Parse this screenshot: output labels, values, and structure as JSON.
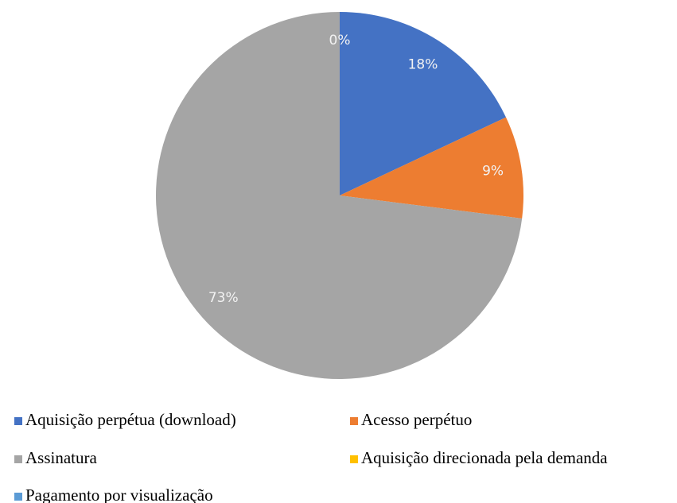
{
  "chart_data": {
    "type": "pie",
    "categories": [
      "Aquisição perpétua (download)",
      "Acesso perpétuo",
      "Assinatura",
      "Aquisição direcionada pela demanda",
      "Pagamento por visualização"
    ],
    "values": [
      18,
      9,
      73,
      0,
      0
    ],
    "value_labels": [
      "18%",
      "9%",
      "73%",
      "0%",
      null
    ],
    "colors": [
      "#4472c4",
      "#ed7d31",
      "#a5a5a5",
      "#ffc000",
      "#5b9bd5"
    ],
    "legend": "bottom"
  }
}
